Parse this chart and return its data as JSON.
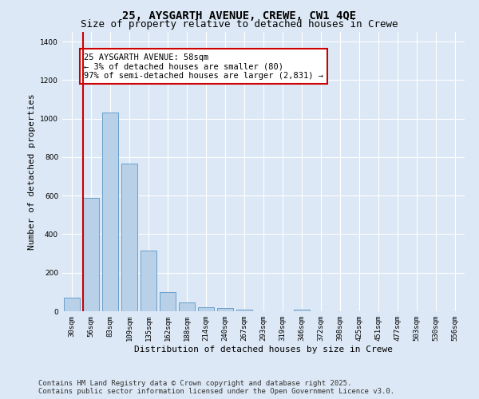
{
  "title_line1": "25, AYSGARTH AVENUE, CREWE, CW1 4QE",
  "title_line2": "Size of property relative to detached houses in Crewe",
  "xlabel": "Distribution of detached houses by size in Crewe",
  "ylabel": "Number of detached properties",
  "categories": [
    "30sqm",
    "56sqm",
    "83sqm",
    "109sqm",
    "135sqm",
    "162sqm",
    "188sqm",
    "214sqm",
    "240sqm",
    "267sqm",
    "293sqm",
    "319sqm",
    "346sqm",
    "372sqm",
    "398sqm",
    "425sqm",
    "451sqm",
    "477sqm",
    "503sqm",
    "530sqm",
    "556sqm"
  ],
  "values": [
    70,
    590,
    1030,
    765,
    315,
    100,
    45,
    22,
    16,
    10,
    0,
    0,
    10,
    0,
    0,
    0,
    0,
    0,
    0,
    0,
    0
  ],
  "bar_color": "#b8d0e8",
  "bar_edge_color": "#6aa0cc",
  "highlight_line_color": "#cc0000",
  "annotation_text": "25 AYSGARTH AVENUE: 58sqm\n← 3% of detached houses are smaller (80)\n97% of semi-detached houses are larger (2,831) →",
  "annotation_box_color": "#cc0000",
  "annotation_box_fill": "#ffffff",
  "ylim": [
    0,
    1450
  ],
  "yticks": [
    0,
    200,
    400,
    600,
    800,
    1000,
    1200,
    1400
  ],
  "background_color": "#dce8f5",
  "grid_color": "#ffffff",
  "footer_line1": "Contains HM Land Registry data © Crown copyright and database right 2025.",
  "footer_line2": "Contains public sector information licensed under the Open Government Licence v3.0.",
  "title_fontsize": 10,
  "subtitle_fontsize": 9,
  "axis_label_fontsize": 8,
  "tick_fontsize": 6.5,
  "annotation_fontsize": 7.5,
  "footer_fontsize": 6.5
}
